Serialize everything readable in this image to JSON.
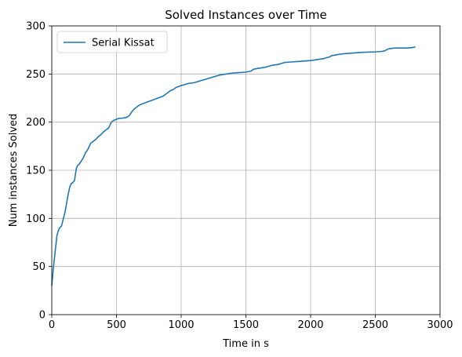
{
  "chart_data": {
    "type": "line",
    "title": "Solved Instances over Time",
    "xlabel": "Time in s",
    "ylabel": "Num instances Solved",
    "xlim": [
      0,
      3000
    ],
    "ylim": [
      0,
      300
    ],
    "xticks": [
      0,
      500,
      1000,
      1500,
      2000,
      2500,
      3000
    ],
    "yticks": [
      0,
      50,
      100,
      150,
      200,
      250,
      300
    ],
    "grid": true,
    "legend_position": "top-left",
    "series": [
      {
        "name": "Serial Kissat",
        "color": "#1f77b4",
        "x": [
          0,
          10,
          20,
          30,
          40,
          50,
          60,
          75,
          90,
          100,
          110,
          120,
          130,
          140,
          150,
          160,
          175,
          190,
          200,
          210,
          220,
          240,
          260,
          280,
          300,
          320,
          340,
          360,
          380,
          400,
          420,
          440,
          460,
          480,
          500,
          520,
          540,
          580,
          600,
          620,
          640,
          660,
          680,
          700,
          740,
          780,
          820,
          860,
          880,
          900,
          920,
          940,
          960,
          1000,
          1050,
          1100,
          1150,
          1200,
          1250,
          1300,
          1350,
          1400,
          1450,
          1500,
          1540,
          1560,
          1600,
          1650,
          1700,
          1750,
          1800,
          1850,
          1900,
          1950,
          2000,
          2050,
          2100,
          2150,
          2160,
          2200,
          2250,
          2300,
          2400,
          2500,
          2550,
          2570,
          2600,
          2620,
          2650,
          2700,
          2750,
          2790,
          2800,
          2810
        ],
        "y": [
          30,
          45,
          58,
          70,
          82,
          87,
          90,
          92,
          100,
          105,
          112,
          120,
          127,
          133,
          136,
          137,
          139,
          152,
          155,
          156,
          158,
          162,
          168,
          172,
          178,
          180,
          182,
          185,
          187,
          190,
          192,
          194,
          200,
          202,
          203,
          204,
          204,
          205,
          207,
          211,
          214,
          216,
          218,
          219,
          221,
          223,
          225,
          227,
          229,
          231,
          233,
          234,
          236,
          238,
          240,
          241,
          243,
          245,
          247,
          249,
          250,
          251,
          251.5,
          252,
          253,
          255,
          256,
          257,
          259,
          260,
          262,
          262.5,
          263,
          263.5,
          264,
          265,
          266,
          268,
          269,
          270,
          271,
          271.5,
          272.5,
          273,
          273.5,
          274,
          276,
          276.5,
          277,
          277,
          277,
          277.5,
          278,
          278
        ]
      }
    ]
  }
}
